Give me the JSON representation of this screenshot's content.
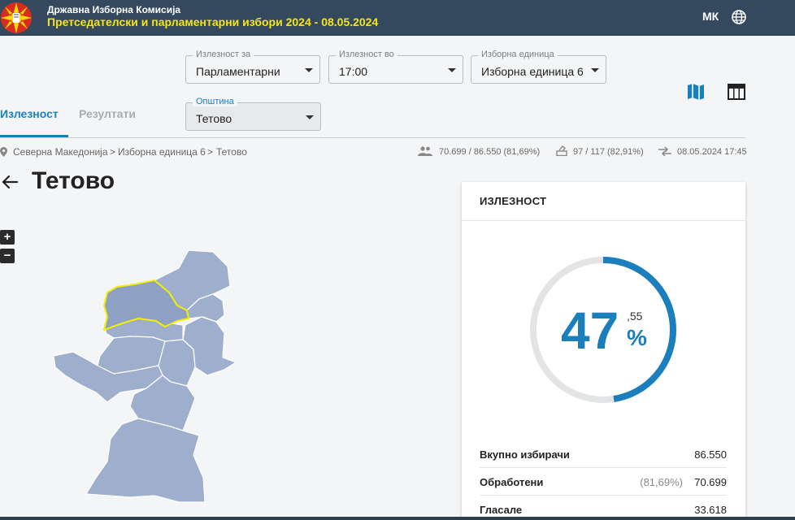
{
  "header": {
    "org_name": "Државна Изборна Комисија",
    "election_title": "Претседателски и парламентарни избори 2024 - 08.05.2024",
    "language": "МК",
    "icons": {
      "logo": "dik-logo",
      "language": "globe-icon"
    }
  },
  "filters": {
    "turnout_for": {
      "label": "Излезност за",
      "value": "Парламентарни"
    },
    "turnout_at": {
      "label": "Излезност во",
      "value": "17:00"
    },
    "electoral_unit": {
      "label": "Изборна единица",
      "value": "Изборна единица 6"
    },
    "municipality": {
      "label": "Општина",
      "value": "Тетово"
    }
  },
  "tabs": [
    {
      "label": "Излезност",
      "active": true
    },
    {
      "label": "Резултати",
      "active": false
    }
  ],
  "view_icons": [
    "map-icon",
    "table-icon"
  ],
  "breadcrumb": {
    "items": [
      "Северна Македонија",
      "Изборна единица 6",
      "Тетово"
    ],
    "separator": ">"
  },
  "stats": {
    "voters": "70.699 / 86.550 (81,69%)",
    "polling_stations": "97 / 117 (82,91%)",
    "updated": "08.05.2024 17:45"
  },
  "page_title": "Тетово",
  "zoom": {
    "in": "+",
    "out": "−"
  },
  "turnout_card": {
    "title": "ИЗЛЕЗНОСТ",
    "percent_int": "47",
    "percent_dec": ",55",
    "percent_sign": "%",
    "gauge_fraction": 0.4755,
    "rows": [
      {
        "label": "Вкупно избирачи",
        "value": "86.550",
        "pct": ""
      },
      {
        "label": "Обработени",
        "value": "70.699",
        "pct": "(81,69%)"
      },
      {
        "label": "Гласале",
        "value": "33.618",
        "pct": ""
      }
    ]
  },
  "colors": {
    "header_bg": "#34495e",
    "header_title": "#f5e51b",
    "accent": "#1a7fc1",
    "map_fill": "#9eaecd",
    "map_selected_outline": "#f0f000"
  }
}
